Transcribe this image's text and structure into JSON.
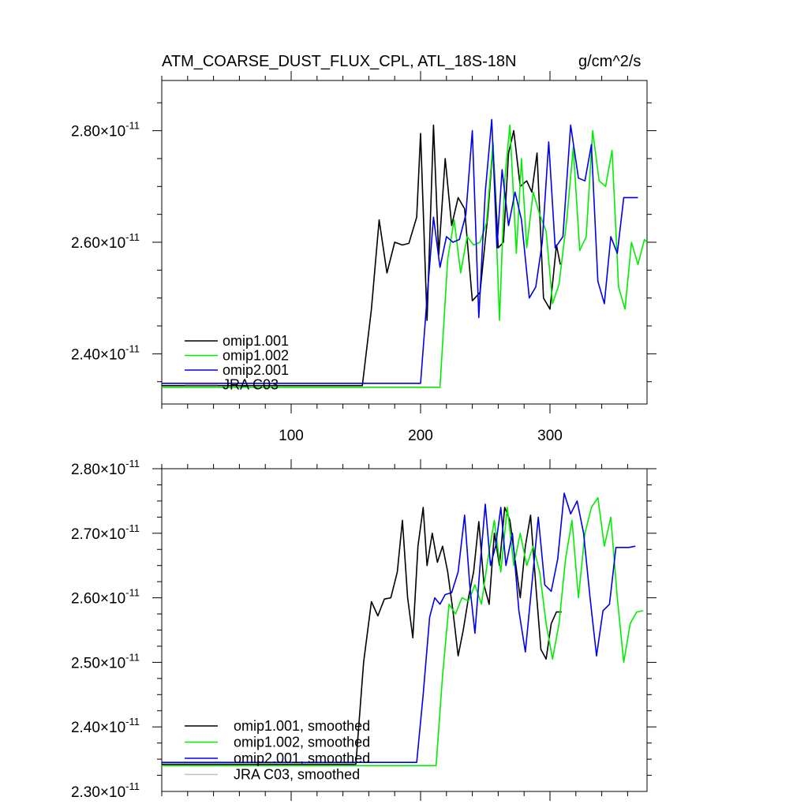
{
  "chart_data": [
    {
      "type": "line",
      "title": "ATM_COARSE_DUST_FLUX_CPL, ATL_18S-18N",
      "units": "g/cm^2/s",
      "xlim": [
        0,
        375
      ],
      "ylim": [
        2.31e-11,
        2.89e-11
      ],
      "x_tick_labels": [
        "100",
        "200",
        "300"
      ],
      "x_ticks": [
        100,
        200,
        300
      ],
      "y_tick_labels": [
        {
          "mant": "2.40",
          "exp": "-11"
        },
        {
          "mant": "2.60",
          "exp": "-11"
        },
        {
          "mant": "2.80",
          "exp": "-11"
        }
      ],
      "y_ticks": [
        2.4e-11,
        2.6e-11,
        2.8e-11
      ],
      "series": [
        {
          "name": "omip1.001",
          "color": "#000000",
          "x": [
            0,
            155,
            162,
            168,
            174,
            180,
            186,
            191,
            197,
            200,
            205,
            210,
            214,
            219,
            224,
            229,
            234,
            240,
            246,
            252,
            256,
            260,
            264,
            268,
            272,
            277,
            282,
            286,
            290,
            295,
            300,
            305,
            308
          ],
          "y": [
            2.343e-11,
            2.343e-11,
            2.48e-11,
            2.64e-11,
            2.545e-11,
            2.6e-11,
            2.595e-11,
            2.598e-11,
            2.645e-11,
            2.795e-11,
            2.46e-11,
            2.81e-11,
            2.577e-11,
            2.75e-11,
            2.63e-11,
            2.68e-11,
            2.66e-11,
            2.495e-11,
            2.51e-11,
            2.65e-11,
            2.775e-11,
            2.59e-11,
            2.6e-11,
            2.76e-11,
            2.8e-11,
            2.7e-11,
            2.71e-11,
            2.69e-11,
            2.76e-11,
            2.5e-11,
            2.48e-11,
            2.595e-11,
            2.56e-11
          ]
        },
        {
          "name": "omip1.002",
          "color": "#00ee00",
          "x": [
            0,
            215,
            221,
            226,
            231,
            236,
            241,
            246,
            251,
            256,
            261,
            265,
            269,
            274,
            278,
            282,
            287,
            292,
            297,
            302,
            307,
            313,
            318,
            323,
            328,
            333,
            338,
            343,
            348,
            353,
            358,
            363,
            368,
            373,
            375
          ],
          "y": [
            2.34e-11,
            2.34e-11,
            2.57e-11,
            2.64e-11,
            2.545e-11,
            2.61e-11,
            2.595e-11,
            2.6e-11,
            2.635e-11,
            2.78e-11,
            2.46e-11,
            2.71e-11,
            2.81e-11,
            2.58e-11,
            2.75e-11,
            2.59e-11,
            2.69e-11,
            2.65e-11,
            2.62e-11,
            2.49e-11,
            2.525e-11,
            2.64e-11,
            2.77e-11,
            2.585e-11,
            2.61e-11,
            2.8e-11,
            2.71e-11,
            2.7e-11,
            2.765e-11,
            2.52e-11,
            2.48e-11,
            2.6e-11,
            2.56e-11,
            2.605e-11,
            2.6e-11
          ]
        },
        {
          "name": "omip2.001",
          "color": "#0000ee",
          "x": [
            0,
            200,
            205,
            210,
            215,
            220,
            225,
            230,
            235,
            240,
            245,
            250,
            255,
            259,
            263,
            268,
            273,
            278,
            284,
            289,
            294,
            299,
            304,
            310,
            316,
            322,
            327,
            332,
            337,
            342,
            347,
            352,
            357,
            363,
            368
          ],
          "y": [
            2.347e-11,
            2.347e-11,
            2.5e-11,
            2.645e-11,
            2.555e-11,
            2.61e-11,
            2.6e-11,
            2.605e-11,
            2.65e-11,
            2.8e-11,
            2.465e-11,
            2.69e-11,
            2.82e-11,
            2.59e-11,
            2.73e-11,
            2.63e-11,
            2.69e-11,
            2.64e-11,
            2.5e-11,
            2.52e-11,
            2.6e-11,
            2.78e-11,
            2.59e-11,
            2.61e-11,
            2.81e-11,
            2.715e-11,
            2.71e-11,
            2.775e-11,
            2.53e-11,
            2.49e-11,
            2.61e-11,
            2.58e-11,
            2.68e-11,
            2.68e-11,
            2.68e-11
          ]
        },
        {
          "name": "JRA C03",
          "color": "#d9a8b3",
          "x": [],
          "y": []
        }
      ]
    },
    {
      "type": "line",
      "title": "",
      "xlim": [
        0,
        375
      ],
      "ylim": [
        2.3e-11,
        2.8e-11
      ],
      "x_tick_labels": [],
      "x_ticks": [
        100,
        200,
        300
      ],
      "y_tick_labels": [
        {
          "mant": "2.30",
          "exp": "-11"
        },
        {
          "mant": "2.40",
          "exp": "-11"
        },
        {
          "mant": "2.50",
          "exp": "-11"
        },
        {
          "mant": "2.60",
          "exp": "-11"
        },
        {
          "mant": "2.70",
          "exp": "-11"
        },
        {
          "mant": "2.80",
          "exp": "-11"
        }
      ],
      "y_ticks": [
        2.3e-11,
        2.4e-11,
        2.5e-11,
        2.6e-11,
        2.7e-11,
        2.8e-11
      ],
      "series": [
        {
          "name": "omip1.001, smoothed",
          "color": "#000000",
          "x": [
            0,
            150,
            156,
            162,
            167,
            172,
            177,
            182,
            186,
            190,
            194,
            198,
            202,
            205,
            209,
            213,
            217,
            221,
            225,
            229,
            233,
            237,
            241,
            245,
            249,
            253,
            257,
            261,
            265,
            269,
            273,
            277,
            281,
            285,
            289,
            293,
            297,
            301,
            305,
            309
          ],
          "y": [
            2.342e-11,
            2.342e-11,
            2.5e-11,
            2.594e-11,
            2.572e-11,
            2.598e-11,
            2.6e-11,
            2.64e-11,
            2.72e-11,
            2.6e-11,
            2.538e-11,
            2.68e-11,
            2.74e-11,
            2.65e-11,
            2.7e-11,
            2.655e-11,
            2.68e-11,
            2.64e-11,
            2.58e-11,
            2.51e-11,
            2.55e-11,
            2.6e-11,
            2.64e-11,
            2.718e-11,
            2.62e-11,
            2.59e-11,
            2.7e-11,
            2.65e-11,
            2.74e-11,
            2.72e-11,
            2.66e-11,
            2.6e-11,
            2.68e-11,
            2.728e-11,
            2.62e-11,
            2.52e-11,
            2.505e-11,
            2.56e-11,
            2.578e-11,
            2.578e-11
          ]
        },
        {
          "name": "omip1.002, smoothed",
          "color": "#00ee00",
          "x": [
            0,
            212,
            217,
            222,
            227,
            232,
            237,
            242,
            247,
            252,
            257,
            262,
            267,
            272,
            277,
            282,
            287,
            292,
            297,
            302,
            307,
            312,
            317,
            322,
            327,
            332,
            337,
            342,
            347,
            352,
            357,
            362,
            367,
            372
          ],
          "y": [
            2.34e-11,
            2.34e-11,
            2.48e-11,
            2.59e-11,
            2.575e-11,
            2.6e-11,
            2.595e-11,
            2.62e-11,
            2.59e-11,
            2.66e-11,
            2.72e-11,
            2.64e-11,
            2.74e-11,
            2.65e-11,
            2.7e-11,
            2.65e-11,
            2.68e-11,
            2.64e-11,
            2.56e-11,
            2.505e-11,
            2.56e-11,
            2.66e-11,
            2.72e-11,
            2.6e-11,
            2.7e-11,
            2.74e-11,
            2.755e-11,
            2.68e-11,
            2.725e-11,
            2.6e-11,
            2.5e-11,
            2.56e-11,
            2.578e-11,
            2.58e-11
          ]
        },
        {
          "name": "omip2.001, smoothed",
          "color": "#0000ee",
          "x": [
            0,
            197,
            202,
            207,
            211,
            215,
            219,
            224,
            229,
            234,
            238,
            242,
            246,
            250,
            254,
            258,
            262,
            266,
            271,
            276,
            281,
            286,
            291,
            296,
            301,
            306,
            311,
            316,
            321,
            326,
            331,
            336,
            341,
            346,
            351,
            356,
            361,
            366
          ],
          "y": [
            2.345e-11,
            2.345e-11,
            2.45e-11,
            2.57e-11,
            2.6e-11,
            2.59e-11,
            2.605e-11,
            2.608e-11,
            2.64e-11,
            2.728e-11,
            2.62e-11,
            2.545e-11,
            2.65e-11,
            2.745e-11,
            2.65e-11,
            2.68e-11,
            2.74e-11,
            2.65e-11,
            2.7e-11,
            2.58e-11,
            2.516e-11,
            2.62e-11,
            2.725e-11,
            2.62e-11,
            2.61e-11,
            2.66e-11,
            2.762e-11,
            2.73e-11,
            2.75e-11,
            2.7e-11,
            2.6e-11,
            2.51e-11,
            2.58e-11,
            2.59e-11,
            2.678e-11,
            2.678e-11,
            2.678e-11,
            2.68e-11
          ]
        },
        {
          "name": "JRA C03, smoothed",
          "color": "#c0c0c0",
          "x": [],
          "y": []
        }
      ]
    }
  ]
}
